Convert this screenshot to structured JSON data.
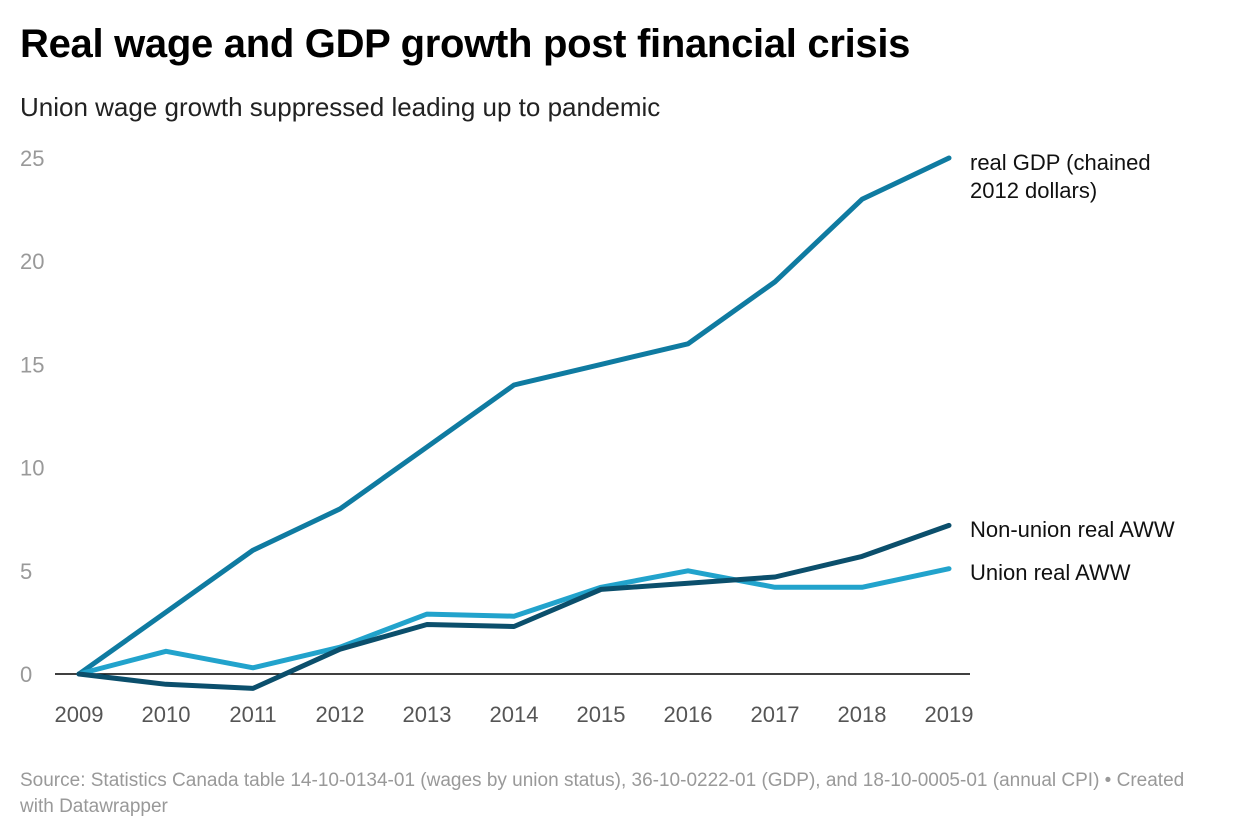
{
  "title": "Real wage and GDP growth post financial crisis",
  "subtitle": "Union wage growth suppressed leading up to pandemic",
  "source": "Source: Statistics Canada table 14-10-0134-01 (wages by union status), 36-10-0222-01 (GDP), and 18-10-0005-01 (annual CPI) • Created with Datawrapper",
  "chart_data": {
    "type": "line",
    "title": "Real wage and GDP growth post financial crisis",
    "subtitle": "Union wage growth suppressed leading up to pandemic",
    "x": [
      "2009",
      "2010",
      "2011",
      "2012",
      "2013",
      "2014",
      "2015",
      "2016",
      "2017",
      "2018",
      "2019"
    ],
    "yticks": [
      "0",
      "5",
      "10",
      "15",
      "20",
      "25"
    ],
    "ylim": [
      0,
      25
    ],
    "grid": false,
    "legend": "direct labels at line ends",
    "series": [
      {
        "name": "real GDP (chained 2012 dollars)",
        "label_lines": [
          "real GDP (chained",
          "2012 dollars)"
        ],
        "color": "#0f7ba1",
        "values": [
          0,
          3.0,
          6.0,
          8.0,
          11.0,
          14.0,
          15.0,
          16.0,
          19.0,
          23.0,
          25.0
        ]
      },
      {
        "name": "Non-union real AWW",
        "label_lines": [
          "Non-union real AWW"
        ],
        "color": "#0b4f6c",
        "values": [
          0,
          -0.5,
          -0.7,
          1.2,
          2.4,
          2.3,
          4.1,
          4.4,
          4.7,
          5.7,
          7.2
        ]
      },
      {
        "name": "Union real AWW",
        "label_lines": [
          "Union real AWW"
        ],
        "color": "#22a3cc",
        "values": [
          0,
          1.1,
          0.3,
          1.3,
          2.9,
          2.8,
          4.2,
          5.0,
          4.2,
          4.2,
          5.1
        ]
      }
    ]
  }
}
